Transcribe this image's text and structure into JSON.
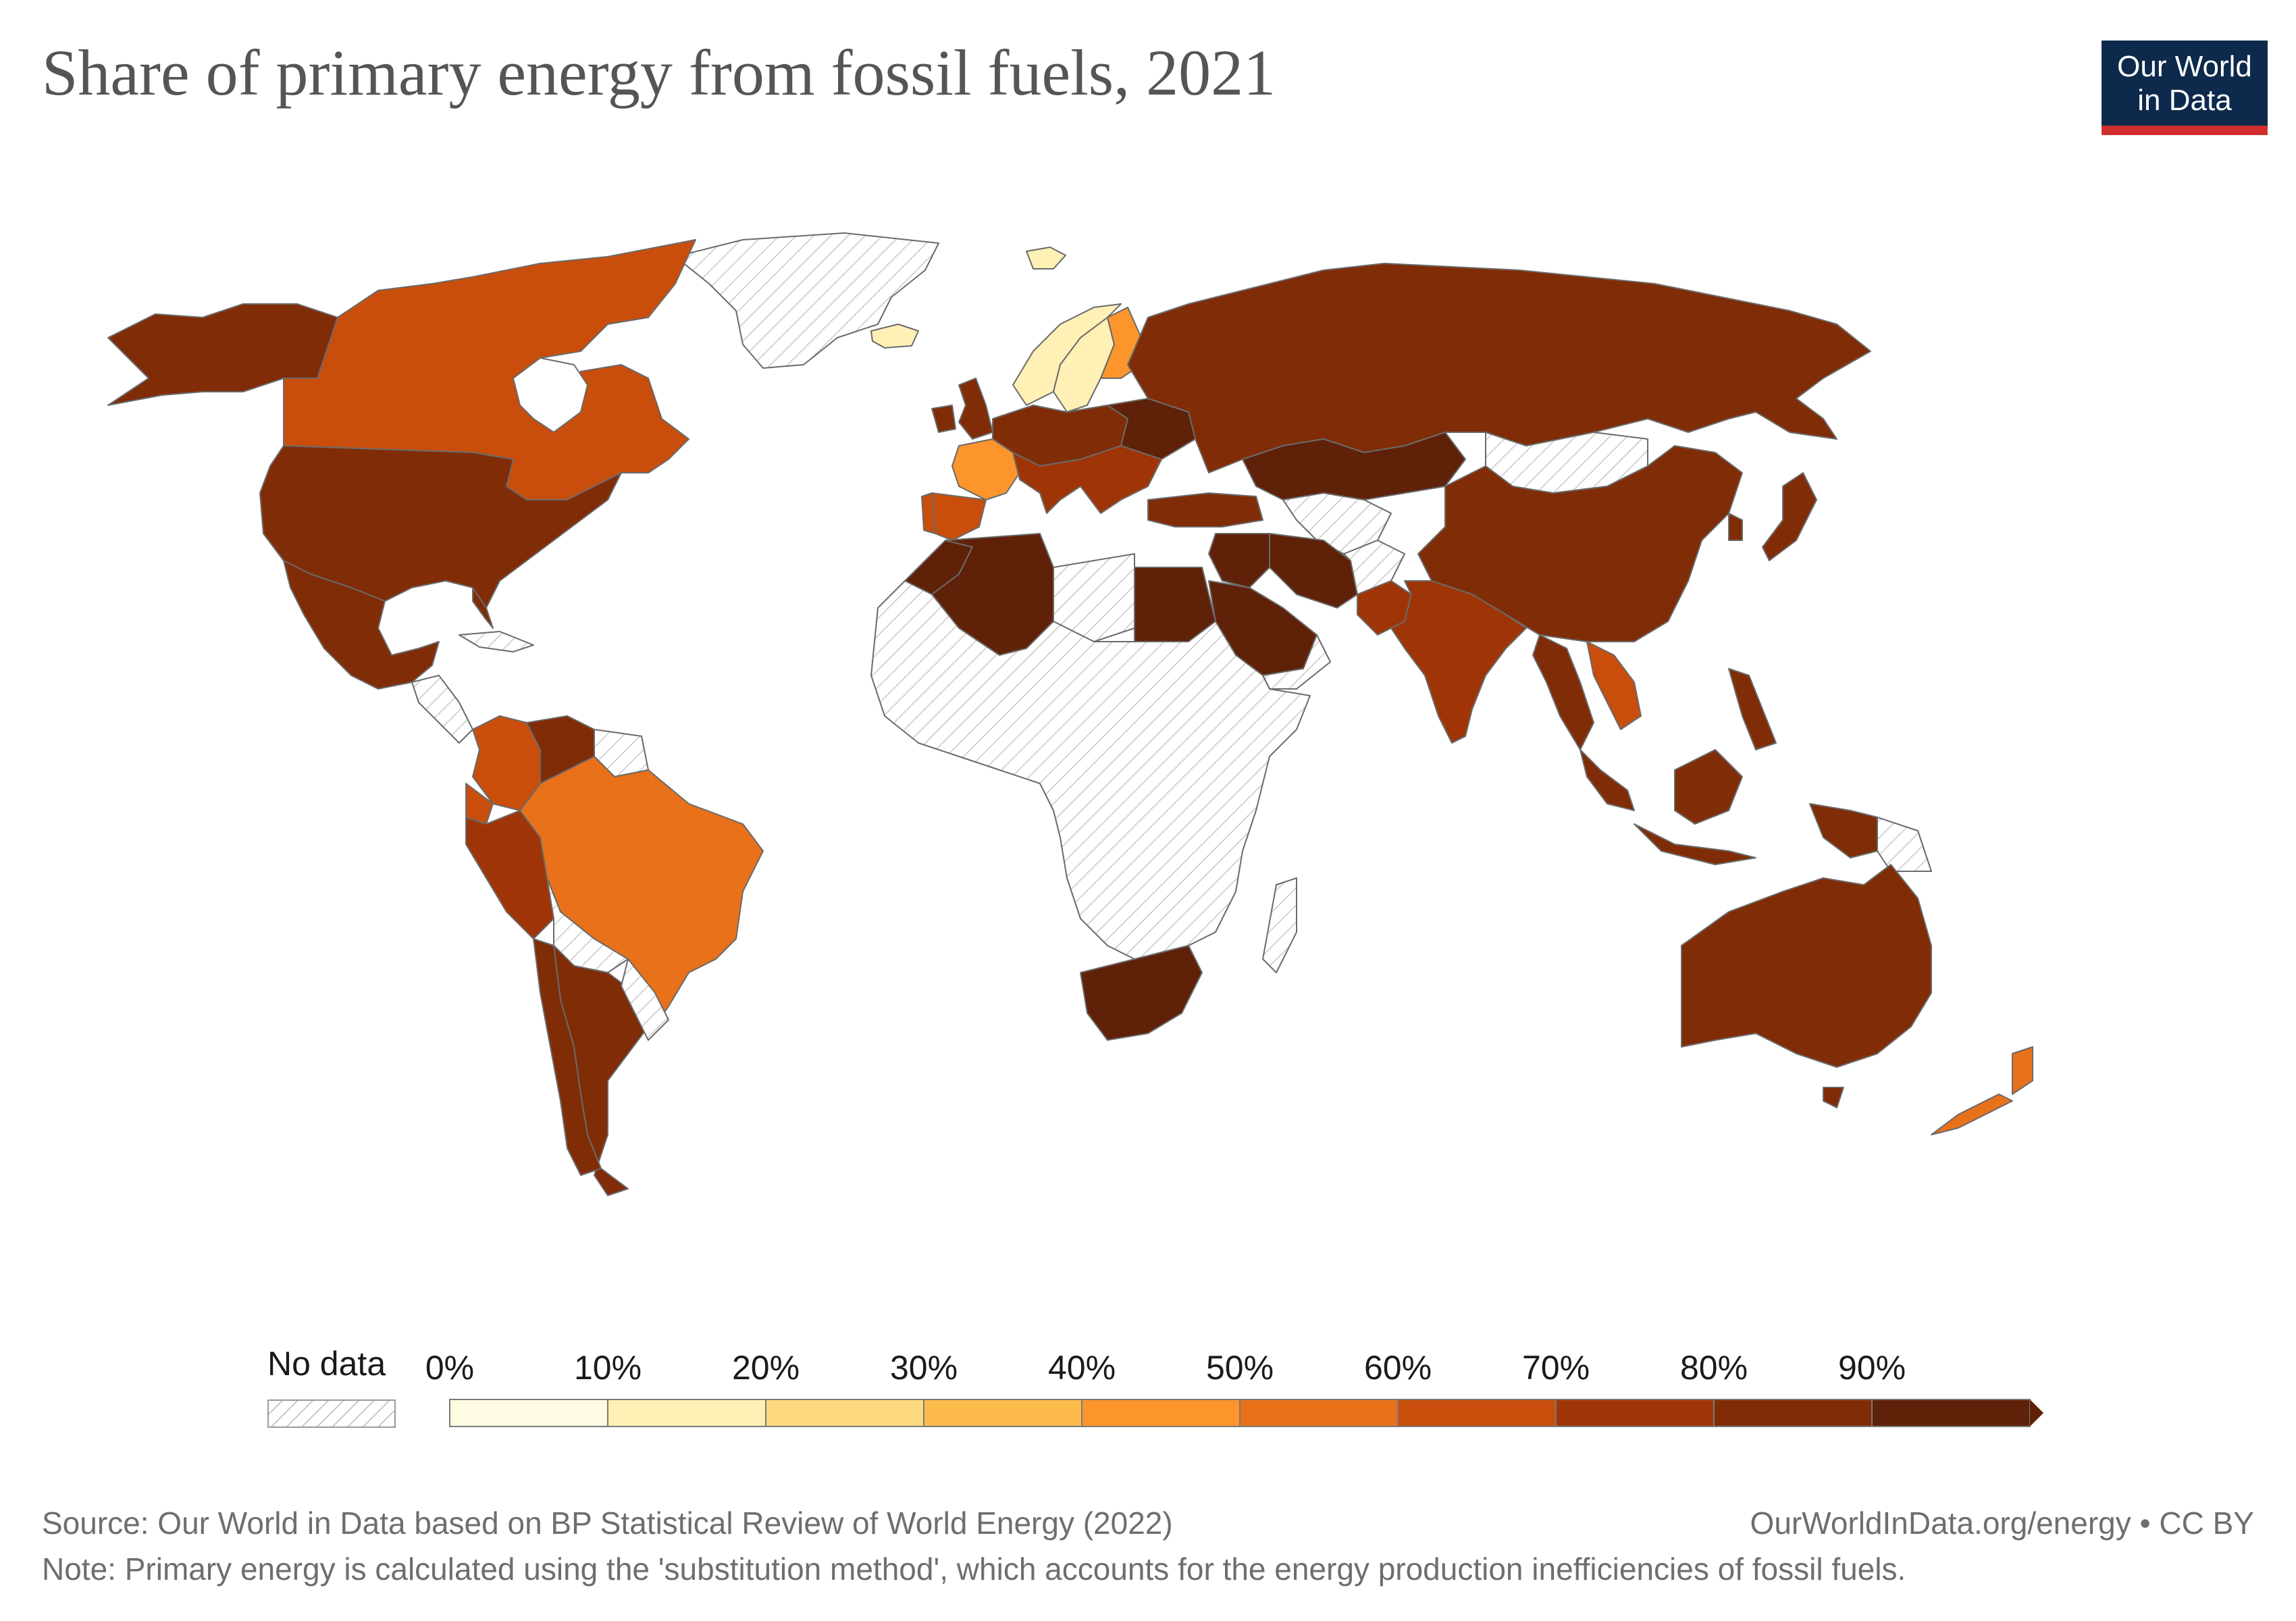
{
  "title": "Share of primary energy from fossil fuels, 2021",
  "logo": {
    "line1": "Our World",
    "line2": "in Data"
  },
  "legend": {
    "no_data_label": "No data",
    "ticks": [
      "0%",
      "10%",
      "20%",
      "30%",
      "40%",
      "50%",
      "60%",
      "70%",
      "80%",
      "90%"
    ],
    "bins": [
      {
        "min": 0,
        "max": 10,
        "color": "#fffbe2"
      },
      {
        "min": 10,
        "max": 20,
        "color": "#fff0b5"
      },
      {
        "min": 20,
        "max": 30,
        "color": "#fed980"
      },
      {
        "min": 30,
        "max": 40,
        "color": "#fdbb4c"
      },
      {
        "min": 40,
        "max": 50,
        "color": "#fb952c"
      },
      {
        "min": 50,
        "max": 60,
        "color": "#e8711a"
      },
      {
        "min": 60,
        "max": 70,
        "color": "#c94e0c"
      },
      {
        "min": 70,
        "max": 80,
        "color": "#9f3507"
      },
      {
        "min": 80,
        "max": 90,
        "color": "#802c07"
      },
      {
        "min": 90,
        "max": 100,
        "color": "#5f2108"
      }
    ]
  },
  "map_colors": {
    "no_data_fill": "#ffffff",
    "no_data_hatch": "#c8c8c8",
    "border": "#6a6a6a"
  },
  "footer": {
    "source": "Source: Our World in Data based on BP Statistical Review of World Energy (2022)",
    "url": "OurWorldInData.org/energy • CC BY",
    "note": "Note: Primary energy is calculated using the 'substitution method', which accounts for the energy production inefficiencies of fossil fuels."
  }
}
